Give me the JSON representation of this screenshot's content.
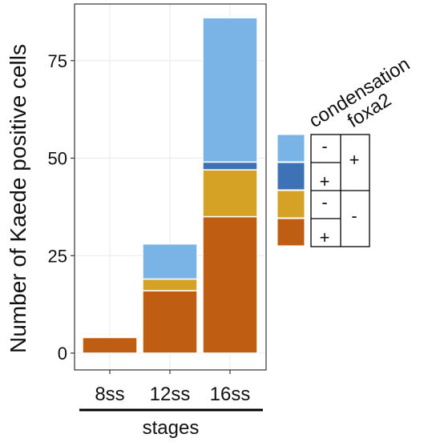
{
  "chart_data": {
    "type": "bar",
    "stacked": true,
    "categories": [
      "8ss",
      "12ss",
      "16ss"
    ],
    "series": [
      {
        "condensation": "+",
        "foxa2": "-",
        "color": "#bf5e12",
        "values": [
          4,
          16,
          35
        ]
      },
      {
        "condensation": "-",
        "foxa2": "-",
        "color": "#d6a226",
        "values": [
          0,
          3,
          12
        ]
      },
      {
        "condensation": "+",
        "foxa2": "+",
        "color": "#3d72b6",
        "values": [
          0,
          0,
          2
        ]
      },
      {
        "condensation": "-",
        "foxa2": "+",
        "color": "#7ab4e6",
        "values": [
          0,
          9,
          37
        ]
      }
    ],
    "ylabel": "Number of Kaede positive cells",
    "xlabel": "stages",
    "ylim": [
      0,
      88
    ],
    "yticks": [
      0,
      25,
      50,
      75
    ],
    "grid": true
  },
  "legend": {
    "header_condensation": "condensation",
    "header_foxa2": "foxa2",
    "rows": [
      {
        "color": "#7ab4e6",
        "condensation": "-"
      },
      {
        "color": "#3d72b6",
        "condensation": "+"
      },
      {
        "color": "#d6a226",
        "condensation": "-"
      },
      {
        "color": "#bf5e12",
        "condensation": "+"
      }
    ],
    "foxa2_groups": [
      "+",
      "-"
    ]
  }
}
